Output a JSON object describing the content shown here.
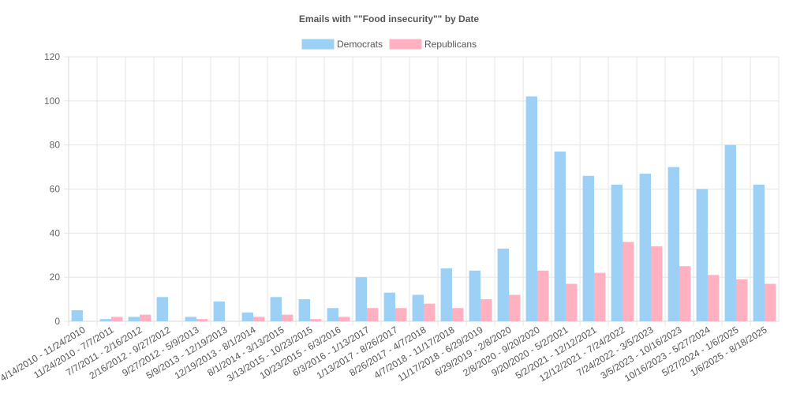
{
  "chart_data": {
    "type": "bar",
    "title": "Emails with \"\"Food insecurity\"\" by Date",
    "xlabel": "",
    "ylabel": "",
    "ylim": [
      0,
      120
    ],
    "yticks": [
      0,
      20,
      40,
      60,
      80,
      100,
      120
    ],
    "grid": true,
    "legend_position": "top-center",
    "categories": [
      "4/14/2010 - 11/24/2010",
      "11/24/2010 - 7/7/2011",
      "7/7/2011 - 2/16/2012",
      "2/16/2012 - 9/27/2012",
      "9/27/2012 - 5/9/2013",
      "5/9/2013 - 12/19/2013",
      "12/19/2013 - 8/1/2014",
      "8/1/2014 - 3/13/2015",
      "3/13/2015 - 10/23/2015",
      "10/23/2015 - 6/3/2016",
      "6/3/2016 - 1/13/2017",
      "1/13/2017 - 8/26/2017",
      "8/26/2017 - 4/7/2018",
      "4/7/2018 - 11/17/2018",
      "11/17/2018 - 6/29/2019",
      "6/29/2019 - 2/8/2020",
      "2/8/2020 - 9/20/2020",
      "9/20/2020 - 5/2/2021",
      "5/2/2021 - 12/12/2021",
      "12/12/2021 - 7/24/2022",
      "7/24/2022 - 3/5/2023",
      "3/5/2023 - 10/16/2023",
      "10/16/2023 - 5/27/2024",
      "5/27/2024 - 1/6/2025",
      "1/6/2025 - 8/18/2025"
    ],
    "series": [
      {
        "name": "Democrats",
        "color": "#9dd0f5",
        "values": [
          5,
          1,
          2,
          11,
          2,
          9,
          4,
          11,
          10,
          6,
          20,
          13,
          12,
          24,
          23,
          33,
          102,
          77,
          66,
          62,
          67,
          70,
          60,
          80,
          62
        ]
      },
      {
        "name": "Republicans",
        "color": "#ffb1c1",
        "values": [
          0,
          2,
          3,
          0,
          1,
          0,
          2,
          3,
          1,
          2,
          6,
          6,
          8,
          6,
          10,
          12,
          23,
          17,
          22,
          36,
          34,
          25,
          21,
          19,
          17
        ]
      }
    ]
  }
}
